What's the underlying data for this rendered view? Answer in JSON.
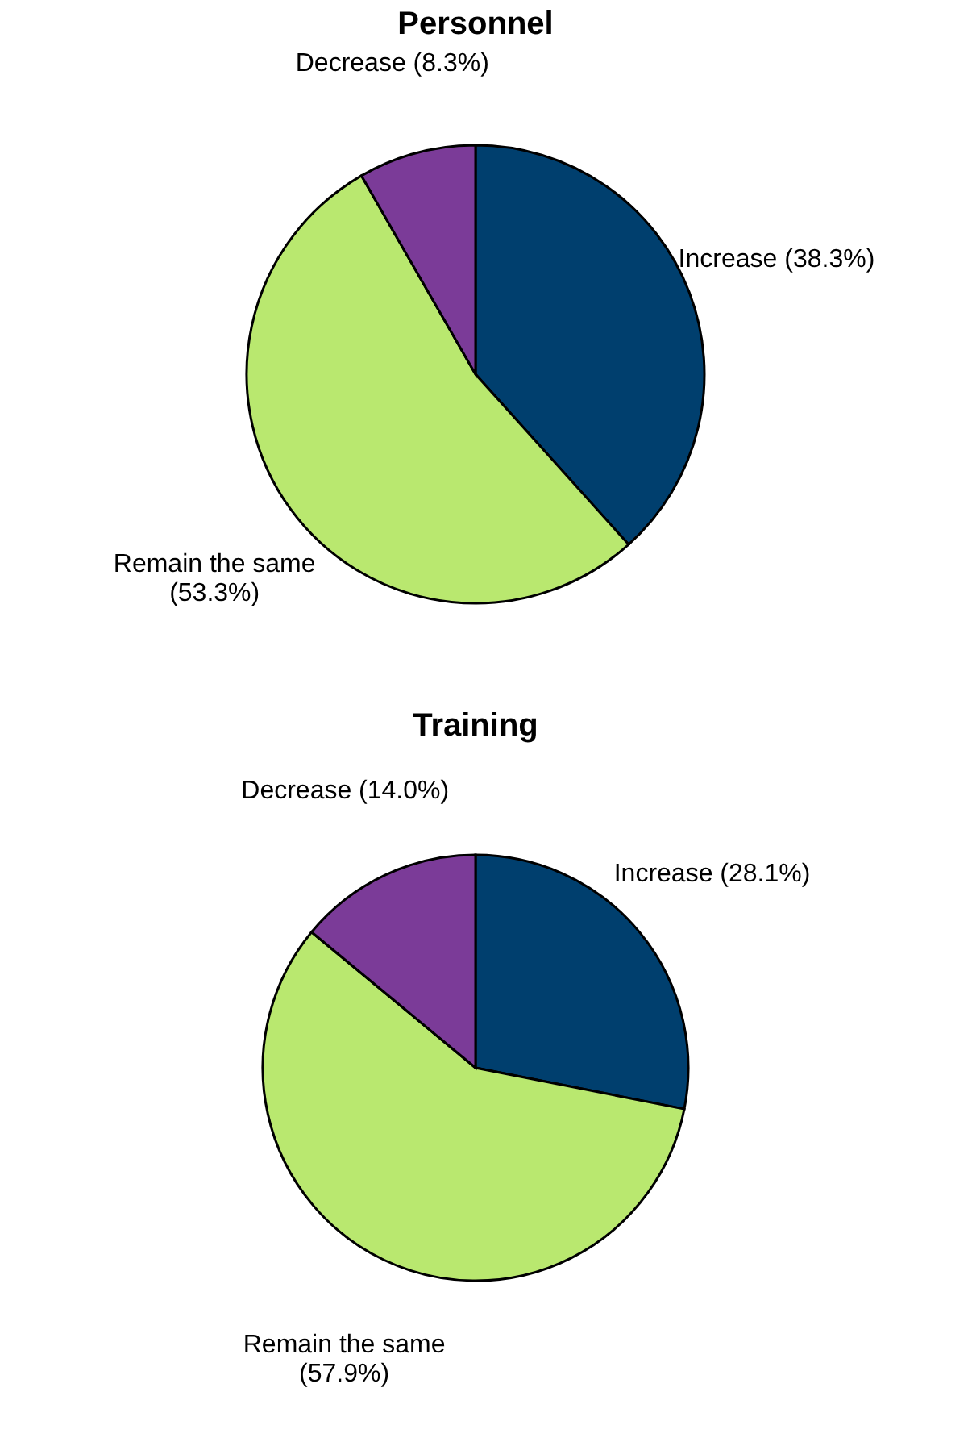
{
  "chart_data": [
    {
      "type": "pie",
      "title": "Personnel",
      "categories": [
        "Increase",
        "Remain the same",
        "Decrease"
      ],
      "values": [
        38.3,
        53.3,
        8.3
      ],
      "colors": [
        "#003f6e",
        "#b9e86f",
        "#7b3b98"
      ],
      "value_labels": [
        "(38.3%)",
        "(53.3%)",
        "(8.3%)"
      ],
      "legend": false
    },
    {
      "type": "pie",
      "title": "Training",
      "categories": [
        "Increase",
        "Remain the same",
        "Decrease"
      ],
      "values": [
        28.1,
        57.9,
        14.0
      ],
      "colors": [
        "#003f6e",
        "#b9e86f",
        "#7b3b98"
      ],
      "value_labels": [
        "(28.1%)",
        "(57.9%)",
        "(14.0%)"
      ],
      "legend": false
    }
  ]
}
